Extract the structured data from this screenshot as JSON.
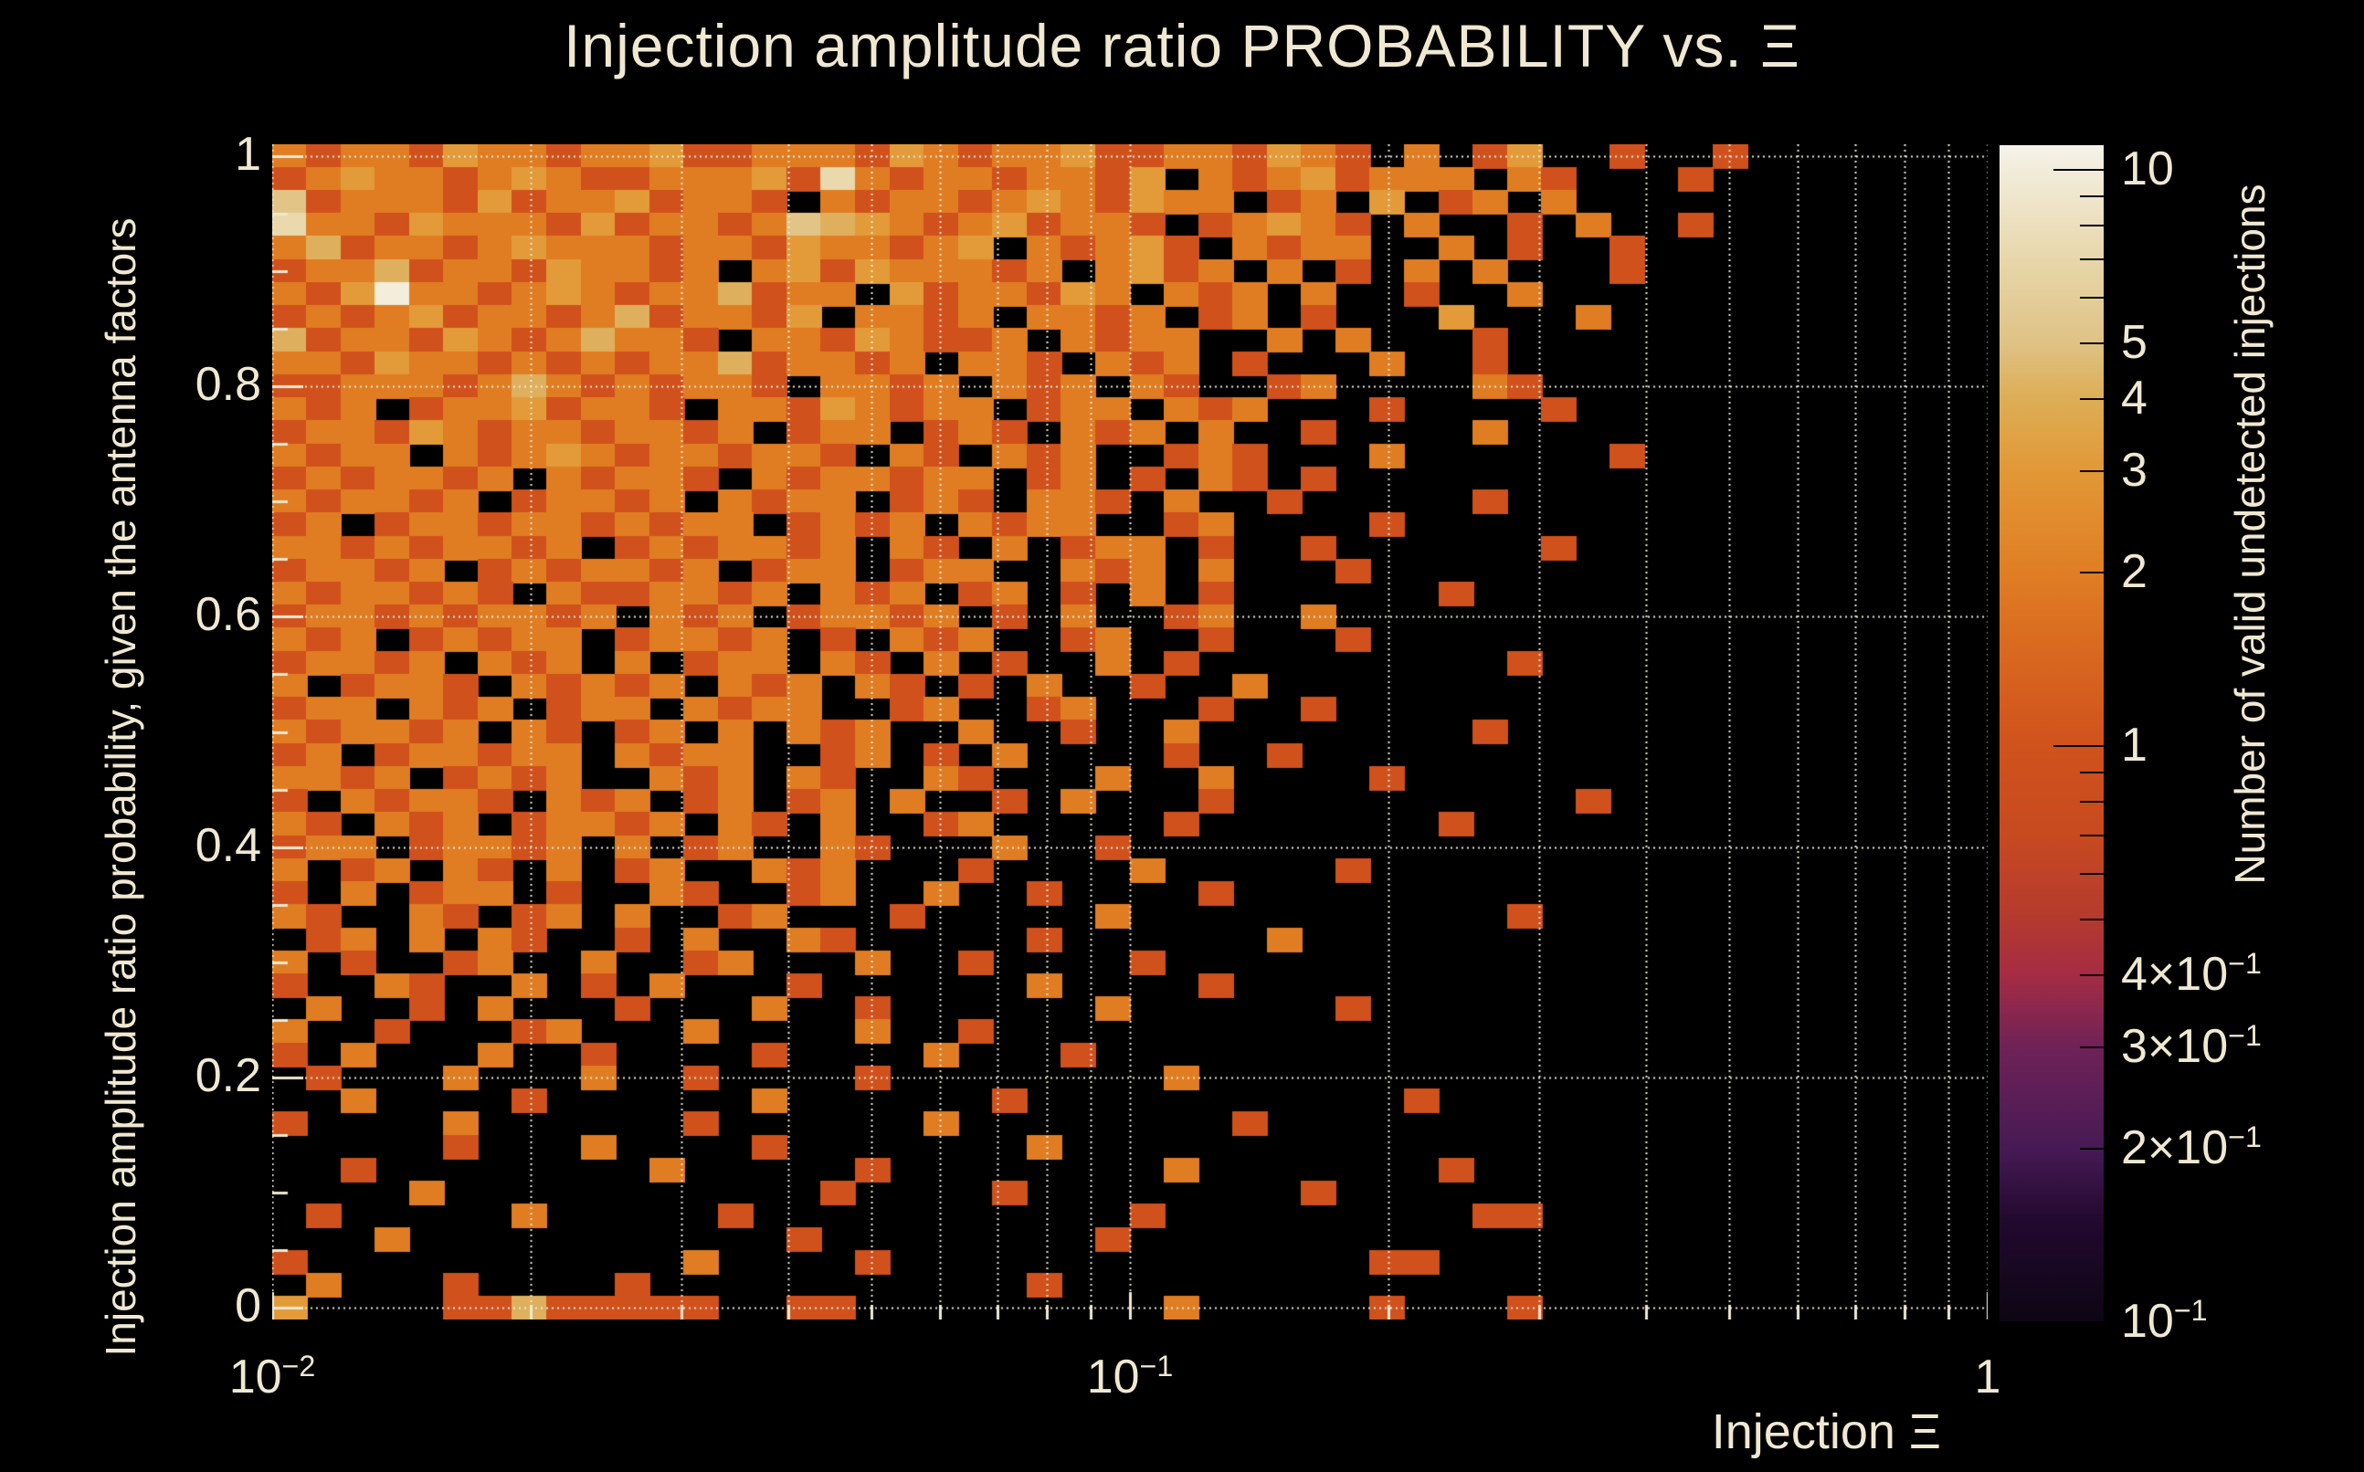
{
  "title": {
    "text": "Injection amplitude ratio PROBABILITY vs.  Ξ"
  },
  "colors": {
    "background": "#000000",
    "text": "#f0e8d1",
    "grid": "#efe9da",
    "tick": "#f0e8d1",
    "empty_cell": "#000000"
  },
  "axes": {
    "x": {
      "title": "Injection Ξ",
      "scale": "log",
      "range": [
        0.01,
        1
      ],
      "major_ticks": [
        {
          "value": 0.01,
          "parts": [
            {
              "t": "10"
            },
            {
              "sup": "−2"
            }
          ]
        },
        {
          "value": 0.1,
          "parts": [
            {
              "t": "10"
            },
            {
              "sup": "−1"
            }
          ]
        },
        {
          "value": 1,
          "parts": [
            {
              "t": "1"
            }
          ]
        }
      ]
    },
    "y": {
      "title": "Injection amplitude ratio probability, given the antenna factors",
      "scale": "linear",
      "range": [
        0,
        1
      ],
      "frame_range": [
        -0.01,
        1.01
      ],
      "minor_step": 0.05,
      "major_ticks": [
        {
          "value": 1,
          "label": "1"
        },
        {
          "value": 0.8,
          "label": "0.8"
        },
        {
          "value": 0.6,
          "label": "0.6"
        },
        {
          "value": 0.4,
          "label": "0.4"
        },
        {
          "value": 0.2,
          "label": "0.2"
        },
        {
          "value": 0,
          "label": "0"
        }
      ]
    },
    "z": {
      "title": "Number of valid undetected injections",
      "scale": "log",
      "range": [
        0.1,
        11
      ],
      "labeled_ticks": [
        {
          "value": 10,
          "parts": [
            {
              "t": "10"
            }
          ]
        },
        {
          "value": 5,
          "parts": [
            {
              "t": "5"
            }
          ]
        },
        {
          "value": 4,
          "parts": [
            {
              "t": "4"
            }
          ]
        },
        {
          "value": 3,
          "parts": [
            {
              "t": "3"
            }
          ]
        },
        {
          "value": 2,
          "parts": [
            {
              "t": "2"
            }
          ]
        },
        {
          "value": 1,
          "parts": [
            {
              "t": "1"
            }
          ]
        },
        {
          "value": 0.4,
          "parts": [
            {
              "t": "4×10"
            },
            {
              "sup": "−1"
            }
          ]
        },
        {
          "value": 0.3,
          "parts": [
            {
              "t": "3×10"
            },
            {
              "sup": "−1"
            }
          ]
        },
        {
          "value": 0.2,
          "parts": [
            {
              "t": "2×10"
            },
            {
              "sup": "−1"
            }
          ]
        },
        {
          "value": 0.1,
          "parts": [
            {
              "t": "10"
            },
            {
              "sup": "−1"
            }
          ]
        }
      ]
    }
  },
  "colorbar": {
    "gradient_stops": [
      {
        "value": 0.1,
        "color": "#0d0613"
      },
      {
        "value": 0.15,
        "color": "#22092f"
      },
      {
        "value": 0.2,
        "color": "#471a55"
      },
      {
        "value": 0.3,
        "color": "#6f2257"
      },
      {
        "value": 0.4,
        "color": "#a52c44"
      },
      {
        "value": 0.5,
        "color": "#b43a2e"
      },
      {
        "value": 0.7,
        "color": "#c74a20"
      },
      {
        "value": 1.0,
        "color": "#d0521c"
      },
      {
        "value": 1.5,
        "color": "#d96a20"
      },
      {
        "value": 2,
        "color": "#e07e24"
      },
      {
        "value": 3,
        "color": "#e29836"
      },
      {
        "value": 4,
        "color": "#ddae55"
      },
      {
        "value": 5,
        "color": "#dfc285"
      },
      {
        "value": 7,
        "color": "#e8d7ab"
      },
      {
        "value": 10,
        "color": "#f2ecdb"
      },
      {
        "value": 11,
        "color": "#f6f3ea"
      }
    ]
  },
  "chart_data": {
    "type": "heatmap",
    "title": "Injection amplitude ratio PROBABILITY vs.  Ξ",
    "xlabel": "Injection Ξ",
    "ylabel": "Injection amplitude ratio probability, given the antenna factors",
    "zlabel": "Number of valid undetected injections",
    "x_scale": "log",
    "x_range": [
      0.01,
      1
    ],
    "y_frame_range": [
      -0.01,
      1.01
    ],
    "z_range": [
      0.1,
      11
    ],
    "x_bins": 50,
    "y_bins": 51,
    "legend_position": "right-colorbar",
    "grid": "dotted-both-axes",
    "value_of_char": {
      ".": 0,
      "1": 1,
      "2": 2,
      "3": 3,
      "4": 4.5,
      "5": 6,
      "6": 8,
      "7": 10.5
    },
    "palette": {
      "1": "#d0511c",
      "2": "#e07d22",
      "3": "#e29b38",
      "4": "#deb05e",
      "5": "#e2c486",
      "6": "#ead9ac",
      "7": "#f3eddc"
    },
    "rows_note": "51 rows top(y≈1.01)→bottom(y≈−0.01), 50 log-x columns 0.01→1; chars map to counts via value_of_char; '.' = empty/black",
    "rows": [
      "21221322122311222132122311221321.2.13..1..1.......",
      "12322123211222316212212213.21231222.21...1........",
      "512221312231221.212212321322.12.3.12.2............",
      "62213222131221254321231221.12321.2..1.2..1.........",
      "241221232221221322123.21231.2122..2.1..1..........",
      "1224122132212.231322212.2312.2.1.2.2...1..........",
      "21372212321224122.3122132.212.2..1..2.............",
      "1212312212412213.2212.2212.12.1...3...2...........",
      "4122132124221.22132112.2122..2.2...1..............",
      "2213221212122412212.221.212.1...2..1..............",
      "112221242121221.2212.212.21..12....21.............",
      "212.12231221.22132122.122.212...1....1............",
      "12213212212212.122.121.212.2..1....2..............",
      "2122.212321221221.21.212..121...2......1..........",
      "1212212.21221.2122122.12.1.21.1...................",
      "212212.12212.2122.121.221.2..1.....1..............",
      "12.12212212122.1212.2122..12....1.................",
      "221212212.1212212.21.2.122.1..1......1............",
      "12212.1212212.122.122..212.2...1..................",
      "2122121.2112212.212.12.1.2.1......1...............",
      "1221212212.212.12212.1.2..12..2...................",
      "212.12122.12212.1.212..12..1...1..................",
      "12212.212.2.122.21.2.1..2.1.........1.............",
      "2.1221.21212.212.21.1.2..1..2.....................",
      "122.212.122.2122..12..12...1..1...................",
      "212212.21.12.2.212..2..1..2........1..............",
      "12.122122.2122..12.1.2....1..1....................",
      "2212.1212..212.21..21...2..2....1.................",
      "1.21221.212.12.12.2..1.2...1..........1...........",
      "21.212.12212.21.2..12.....1.......1...............",
      "122.12212.2.12..21...2..1.........................",
      "2.12.21.2.12..212...1....2.....1..................",
      "1.2.122.1..21..12..2..1....1......................",
      "21..21.12.2..12...1.....2...........1.............",
      ".12.2.21..1.2..21.....1......2....................",
      "2.1..12..2..12...2..1....1........................",
      "1..21..2.1.2...1......2....1......................",
      ".2..1.2...1...2..1......2......1..................",
      "2..1...12...2....2..1.............................",
      "1.2...2..1....1....2...1..........................",
      ".1...2...2..1....1........2.......................",
      "..2....1......2......1...........1................",
      "1....2......1......2........1.....................",
      ".....1...2....1.......2...........................",
      "..1........2.....1........2.......1...............",
      "....2...........1....1........1...................",
      ".1.....2.....1...........1.........11.............",
      "...2...........1........1.........................",
      "1...........2....1..............11................",
      ".2...1....1...........1...........................",
      "3....11411111..11.........2.....1...1............."
    ]
  }
}
